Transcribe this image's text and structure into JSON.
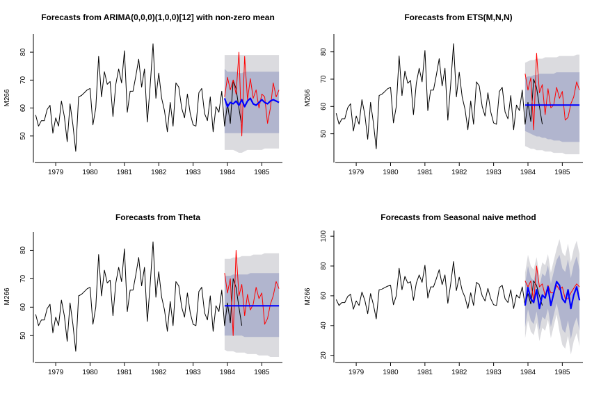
{
  "colors": {
    "history": "#000000",
    "actual": "#ff0000",
    "forecast": "#0000ff",
    "band80": "#b1b5ce",
    "band95": "#dbdbdf",
    "axis": "#000000"
  },
  "chart_data": [
    {
      "type": "line",
      "title": "Forecasts from ARIMA(0,0,0)(1,0,0)[12] with non-zero mean",
      "ylabel": "M266",
      "xlim": [
        1978.35,
        1985.6
      ],
      "ylim": [
        42,
        85
      ],
      "yticks": [
        50,
        60,
        70,
        80
      ],
      "xticks": [
        1979,
        1980,
        1981,
        1982,
        1983,
        1984,
        1985
      ],
      "history": {
        "start": 1978.417,
        "step": 0.08333,
        "values": [
          57.5,
          53.5,
          55.5,
          55.5,
          59.5,
          61,
          51,
          56.5,
          53.5,
          62.5,
          57,
          48,
          61.5,
          54,
          44.5,
          64,
          64.5,
          65.5,
          66.5,
          67,
          54,
          60,
          78.5,
          64,
          73,
          68.5,
          69.5,
          57,
          68.5,
          74,
          69,
          80.5,
          58.5,
          66,
          66,
          71.5,
          77.5,
          67.5,
          74,
          55,
          68,
          83,
          63.5,
          72.5,
          63.5,
          59,
          51.5,
          62,
          53.5,
          69,
          67.5,
          60,
          56.5,
          65,
          58,
          54,
          53.5,
          65.5,
          67,
          58,
          55.5,
          64,
          51.5,
          60.5,
          58.5,
          66,
          53.5,
          61.5,
          54.5,
          70,
          67,
          60,
          53.5
        ]
      },
      "actual": {
        "start": 1983.917,
        "step": 0.08333,
        "values": [
          64,
          71,
          66.5,
          70,
          65,
          80,
          50,
          78.5,
          63,
          70.5,
          63.5,
          66.5,
          60,
          65,
          64,
          54.5,
          60,
          69,
          64,
          66.5
        ]
      },
      "forecast": {
        "start": 1983.917,
        "step": 0.08333,
        "values": [
          63.5,
          60.5,
          62,
          61.5,
          62.5,
          61,
          63,
          60.5,
          62.5,
          63.5,
          61.5,
          61,
          62,
          63,
          62,
          61.5,
          62.5,
          63,
          62.5,
          62
        ]
      },
      "band80": {
        "lower": [
          51,
          51,
          51,
          51,
          51,
          51,
          51,
          51,
          51,
          51,
          51,
          51,
          51,
          51,
          51,
          51,
          51,
          51,
          51,
          51
        ],
        "upper": [
          74,
          73,
          73,
          73,
          73,
          72.5,
          72.5,
          73,
          73,
          73,
          73,
          73,
          73,
          73,
          73,
          73,
          73,
          73,
          73,
          73
        ]
      },
      "band95": {
        "lower": [
          45,
          45,
          45,
          45,
          44.5,
          44,
          44,
          44.5,
          45,
          45,
          45,
          45,
          45,
          45,
          45.5,
          45.5,
          45.5,
          45.5,
          45.5,
          45.5
        ],
        "upper": [
          79,
          79,
          79,
          79,
          79,
          79,
          79,
          79,
          79,
          79,
          79,
          79,
          79,
          79,
          79,
          79,
          79,
          79,
          79,
          79
        ]
      }
    },
    {
      "type": "line",
      "title": "Forecasts from ETS(M,N,N)",
      "ylabel": "M266",
      "xlim": [
        1978.35,
        1985.6
      ],
      "ylim": [
        41,
        85
      ],
      "yticks": [
        50,
        60,
        70,
        80
      ],
      "xticks": [
        1979,
        1980,
        1981,
        1982,
        1983,
        1984,
        1985
      ],
      "history": {
        "start": 1978.417,
        "step": 0.08333,
        "values": [
          57.5,
          53.5,
          55.5,
          55.5,
          59.5,
          61,
          51,
          56.5,
          53.5,
          62.5,
          57,
          48,
          61.5,
          54,
          44.5,
          64,
          64.5,
          65.5,
          66.5,
          67,
          54,
          60,
          78.5,
          64,
          73,
          68.5,
          69.5,
          57,
          68.5,
          74,
          69,
          80.5,
          58.5,
          66,
          66,
          71.5,
          77.5,
          67.5,
          74,
          55,
          68,
          83,
          63.5,
          72.5,
          63.5,
          59,
          51.5,
          62,
          53.5,
          69,
          67.5,
          60,
          56.5,
          65,
          58,
          54,
          53.5,
          65.5,
          67,
          58,
          55.5,
          64,
          51.5,
          60.5,
          58.5,
          66,
          53.5,
          61.5,
          54.5,
          70,
          67,
          60,
          53.5
        ]
      },
      "actual": {
        "start": 1983.917,
        "step": 0.08333,
        "values": [
          72,
          66,
          70.5,
          51.5,
          79.5,
          65,
          68,
          57,
          66.5,
          59.5,
          60.5,
          67,
          63,
          65.5,
          55,
          56,
          61,
          63.5,
          69,
          66
        ]
      },
      "forecast": {
        "start": 1983.917,
        "step": 0.08333,
        "values": [
          60.5,
          60.5,
          60.5,
          60.5,
          60.5,
          60.5,
          60.5,
          60.5,
          60.5,
          60.5,
          60.5,
          60.5,
          60.5,
          60.5,
          60.5,
          60.5,
          60.5,
          60.5,
          60.5,
          60.5
        ]
      },
      "band80": {
        "lower": [
          51,
          50.5,
          50,
          49.5,
          49,
          49,
          48.5,
          48.5,
          48,
          48,
          47.5,
          47.5,
          47.5,
          47,
          47,
          47,
          47,
          47,
          47,
          47
        ],
        "upper": [
          70.5,
          71,
          71,
          71.5,
          71.5,
          72,
          72,
          72,
          72,
          72,
          72,
          72.5,
          72.5,
          72.5,
          72.5,
          72.5,
          72.5,
          72.5,
          72.5,
          72.5
        ]
      },
      "band95": {
        "lower": [
          45.5,
          45,
          44.5,
          44.5,
          44,
          44,
          44,
          43.5,
          43.5,
          43.5,
          43,
          43,
          43,
          43,
          42.5,
          42.5,
          42.5,
          42.5,
          42.5,
          42.5
        ],
        "upper": [
          76,
          76.5,
          77,
          77,
          77.5,
          77.5,
          77.5,
          78,
          78,
          78,
          78,
          78,
          78.5,
          78.5,
          78.5,
          78.5,
          78.5,
          78.5,
          79,
          79
        ]
      }
    },
    {
      "type": "line",
      "title": "Forecasts from Theta",
      "ylabel": "M266",
      "xlim": [
        1978.35,
        1985.6
      ],
      "ylim": [
        42,
        85
      ],
      "yticks": [
        50,
        60,
        70,
        80
      ],
      "xticks": [
        1979,
        1980,
        1981,
        1982,
        1983,
        1984,
        1985
      ],
      "history": {
        "start": 1978.417,
        "step": 0.08333,
        "values": [
          57.5,
          53.5,
          55.5,
          55.5,
          59.5,
          61,
          51,
          56.5,
          53.5,
          62.5,
          57,
          48,
          61.5,
          54,
          44.5,
          64,
          64.5,
          65.5,
          66.5,
          67,
          54,
          60,
          78.5,
          64,
          73,
          68.5,
          69.5,
          57,
          68.5,
          74,
          69,
          80.5,
          58.5,
          66,
          66,
          71.5,
          77.5,
          67.5,
          74,
          55,
          68,
          83,
          63.5,
          72.5,
          63.5,
          59,
          51.5,
          62,
          53.5,
          69,
          67.5,
          60,
          56.5,
          65,
          58,
          54,
          53.5,
          65.5,
          67,
          58,
          55.5,
          64,
          51.5,
          60.5,
          58.5,
          66,
          53.5,
          61.5,
          54.5,
          70,
          67,
          60,
          53.5
        ]
      },
      "actual": {
        "start": 1983.917,
        "step": 0.08333,
        "values": [
          72,
          65,
          70,
          50,
          80,
          64,
          68,
          57,
          64.5,
          59,
          61,
          67,
          63,
          65,
          54,
          56,
          61,
          64,
          69,
          66.5
        ]
      },
      "forecast": {
        "start": 1983.917,
        "step": 0.08333,
        "values": [
          60.5,
          60.5,
          60.5,
          60.5,
          60.5,
          60.5,
          60.5,
          60.5,
          60.5,
          60.5,
          60.5,
          60.5,
          60.5,
          60.5,
          60.5,
          60.5,
          60.5,
          60.5,
          60.5,
          60.5
        ]
      },
      "band80": {
        "lower": [
          50,
          50,
          50,
          50,
          50,
          50,
          50,
          49.5,
          49.5,
          49.5,
          49.5,
          49.5,
          49.5,
          49.5,
          49.5,
          49.5,
          49.5,
          49.5,
          49.5,
          49.5
        ],
        "upper": [
          71,
          71,
          71,
          71.5,
          71.5,
          71.5,
          71.5,
          71.5,
          71.5,
          72,
          72,
          72,
          72,
          72,
          72,
          72,
          72,
          72,
          72,
          72
        ]
      },
      "band95": {
        "lower": [
          45,
          44.5,
          44.5,
          44.5,
          44,
          44,
          44,
          44,
          43.5,
          43.5,
          43.5,
          43.5,
          43,
          43,
          43,
          43,
          42.5,
          42.5,
          42.5,
          42.5
        ],
        "upper": [
          77,
          77,
          77,
          77.5,
          77.5,
          77.5,
          78,
          78,
          78,
          78,
          78.5,
          78.5,
          78.5,
          78.5,
          79,
          79,
          79,
          79,
          79,
          79
        ]
      }
    },
    {
      "type": "line",
      "title": "Forecasts from Seasonal naive method",
      "ylabel": "M266",
      "xlim": [
        1978.35,
        1985.6
      ],
      "ylim": [
        18,
        101
      ],
      "yticks": [
        20,
        40,
        60,
        80,
        100
      ],
      "xticks": [
        1979,
        1980,
        1981,
        1982,
        1983,
        1984,
        1985
      ],
      "history": {
        "start": 1978.417,
        "step": 0.08333,
        "values": [
          57.5,
          53.5,
          55.5,
          55.5,
          59.5,
          61,
          51,
          56.5,
          53.5,
          62.5,
          57,
          48,
          61.5,
          54,
          44.5,
          64,
          64.5,
          65.5,
          66.5,
          67,
          54,
          60,
          78.5,
          64,
          73,
          68.5,
          69.5,
          57,
          68.5,
          74,
          69,
          80.5,
          58.5,
          66,
          66,
          71.5,
          77.5,
          67.5,
          74,
          55,
          68,
          83,
          63.5,
          72.5,
          63.5,
          59,
          51.5,
          62,
          53.5,
          69,
          67.5,
          60,
          56.5,
          65,
          58,
          54,
          53.5,
          65.5,
          67,
          58,
          55.5,
          64,
          51.5,
          60.5,
          58.5,
          66,
          53.5,
          61.5,
          54.5,
          70,
          67,
          60,
          53.5
        ]
      },
      "actual": {
        "start": 1983.917,
        "step": 0.08333,
        "values": [
          70,
          66,
          70,
          56,
          80,
          66,
          68,
          60,
          67,
          62,
          62,
          67,
          64,
          66,
          58,
          58,
          62,
          65,
          68,
          66
        ]
      },
      "forecast": {
        "start": 1983.917,
        "step": 0.08333,
        "values": [
          53.5,
          65.5,
          58,
          55.5,
          64,
          51.5,
          60.5,
          58.5,
          66,
          53.5,
          61.5,
          69.5,
          67,
          58,
          55.5,
          64,
          51.5,
          60.5,
          66,
          57
        ]
      },
      "band80": {
        "lower": [
          39,
          51,
          43.5,
          41,
          49.5,
          37,
          46,
          44,
          51.5,
          39,
          47,
          55,
          46.5,
          37.5,
          35,
          43.5,
          31,
          40,
          45.5,
          36.5
        ],
        "upper": [
          68,
          80,
          72.5,
          70,
          78.5,
          66,
          75,
          73,
          80.5,
          68,
          76,
          84,
          87.5,
          78.5,
          76,
          84.5,
          72,
          81,
          86.5,
          77.5
        ]
      },
      "band95": {
        "lower": [
          31.5,
          43.5,
          36,
          33.5,
          42,
          29.5,
          38.5,
          36.5,
          44,
          31.5,
          39.5,
          47.5,
          36,
          27,
          24.5,
          33,
          20.5,
          29.5,
          35,
          26
        ],
        "upper": [
          75.5,
          87.5,
          80,
          77.5,
          86,
          73.5,
          82.5,
          80.5,
          88,
          75.5,
          83.5,
          91.5,
          98,
          89,
          86.5,
          95,
          82.5,
          91.5,
          97,
          88
        ]
      }
    }
  ]
}
